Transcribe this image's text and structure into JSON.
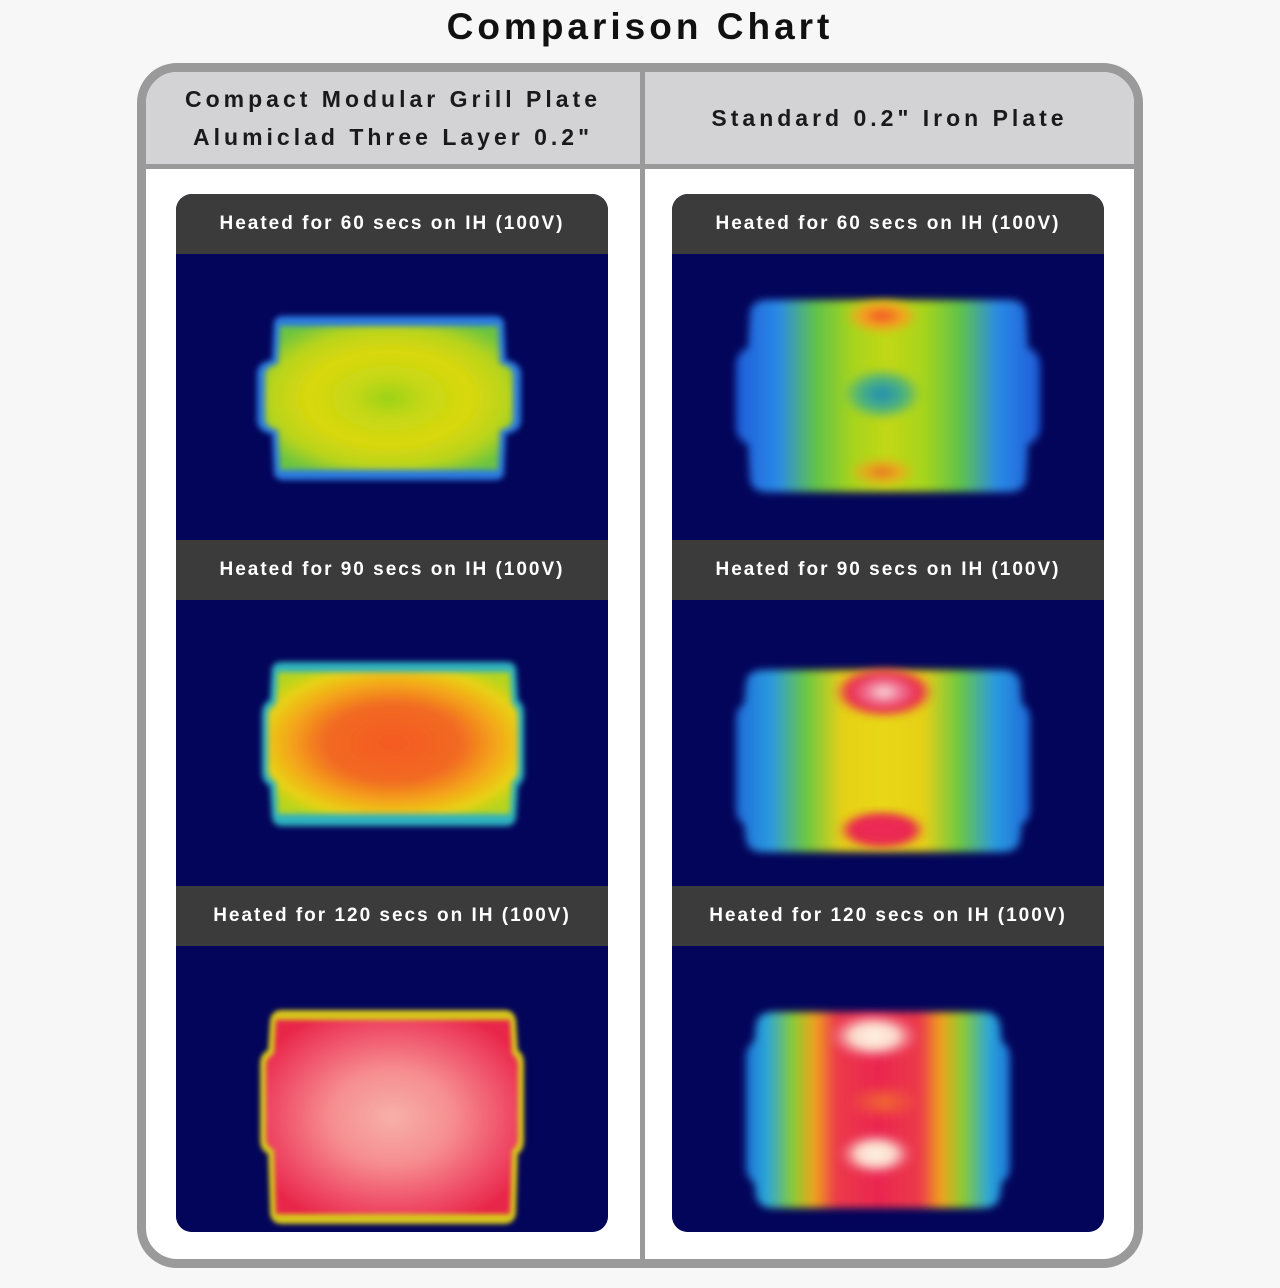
{
  "title": "Comparison Chart",
  "columns": [
    {
      "header": "Compact Modular Grill Plate\nAlumiclad Three Layer 0.2\"",
      "cells": [
        {
          "label": "Heated for 60 secs on IH (100V)"
        },
        {
          "label": "Heated for 90 secs on IH (100V)"
        },
        {
          "label": "Heated for 120 secs on IH (100V)"
        }
      ]
    },
    {
      "header": "Standard 0.2\" Iron Plate",
      "cells": [
        {
          "label": "Heated for 60 secs on IH (100V)"
        },
        {
          "label": "Heated for 90 secs on IH (100V)"
        },
        {
          "label": "Heated for 120 secs on IH (100V)"
        }
      ]
    }
  ],
  "colors": {
    "background": "#03055a",
    "label_bar": "#3b3b3b",
    "header_bar": "#d3d3d6",
    "frame": "#9a9a9a"
  }
}
